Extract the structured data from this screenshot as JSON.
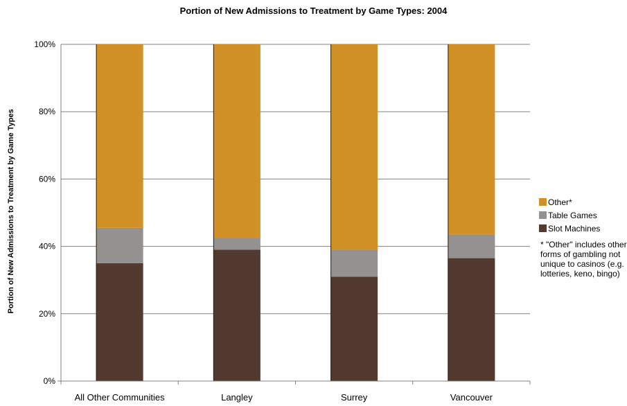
{
  "chart_data": {
    "type": "bar",
    "stacked": true,
    "title": "Portion of New Admissions to Treatment by Game Types: 2004",
    "xlabel": "",
    "ylabel": "Portion of New Admissions to Treatment by Game Types",
    "ylim": [
      0,
      100
    ],
    "yticks": [
      "0%",
      "20%",
      "40%",
      "60%",
      "80%",
      "100%"
    ],
    "categories": [
      "All Other Communities",
      "Langley",
      "Surrey",
      "Vancouver"
    ],
    "series": [
      {
        "name": "Slot Machines",
        "color": "#533a31",
        "values": [
          35,
          39,
          31,
          36.5
        ]
      },
      {
        "name": "Table Games",
        "color": "#949290",
        "values": [
          10.5,
          3.5,
          8,
          7
        ]
      },
      {
        "name": "Other*",
        "color": "#d19126",
        "values": [
          54.5,
          57.5,
          61,
          56.5
        ]
      }
    ],
    "legend_order": [
      "Other*",
      "Table Games",
      "Slot Machines"
    ],
    "legend_position": "right",
    "grid": true,
    "footnote": "* \"Other\" includes other forms of gambling not unique to casinos (e.g. lotteries, keno, bingo)"
  }
}
